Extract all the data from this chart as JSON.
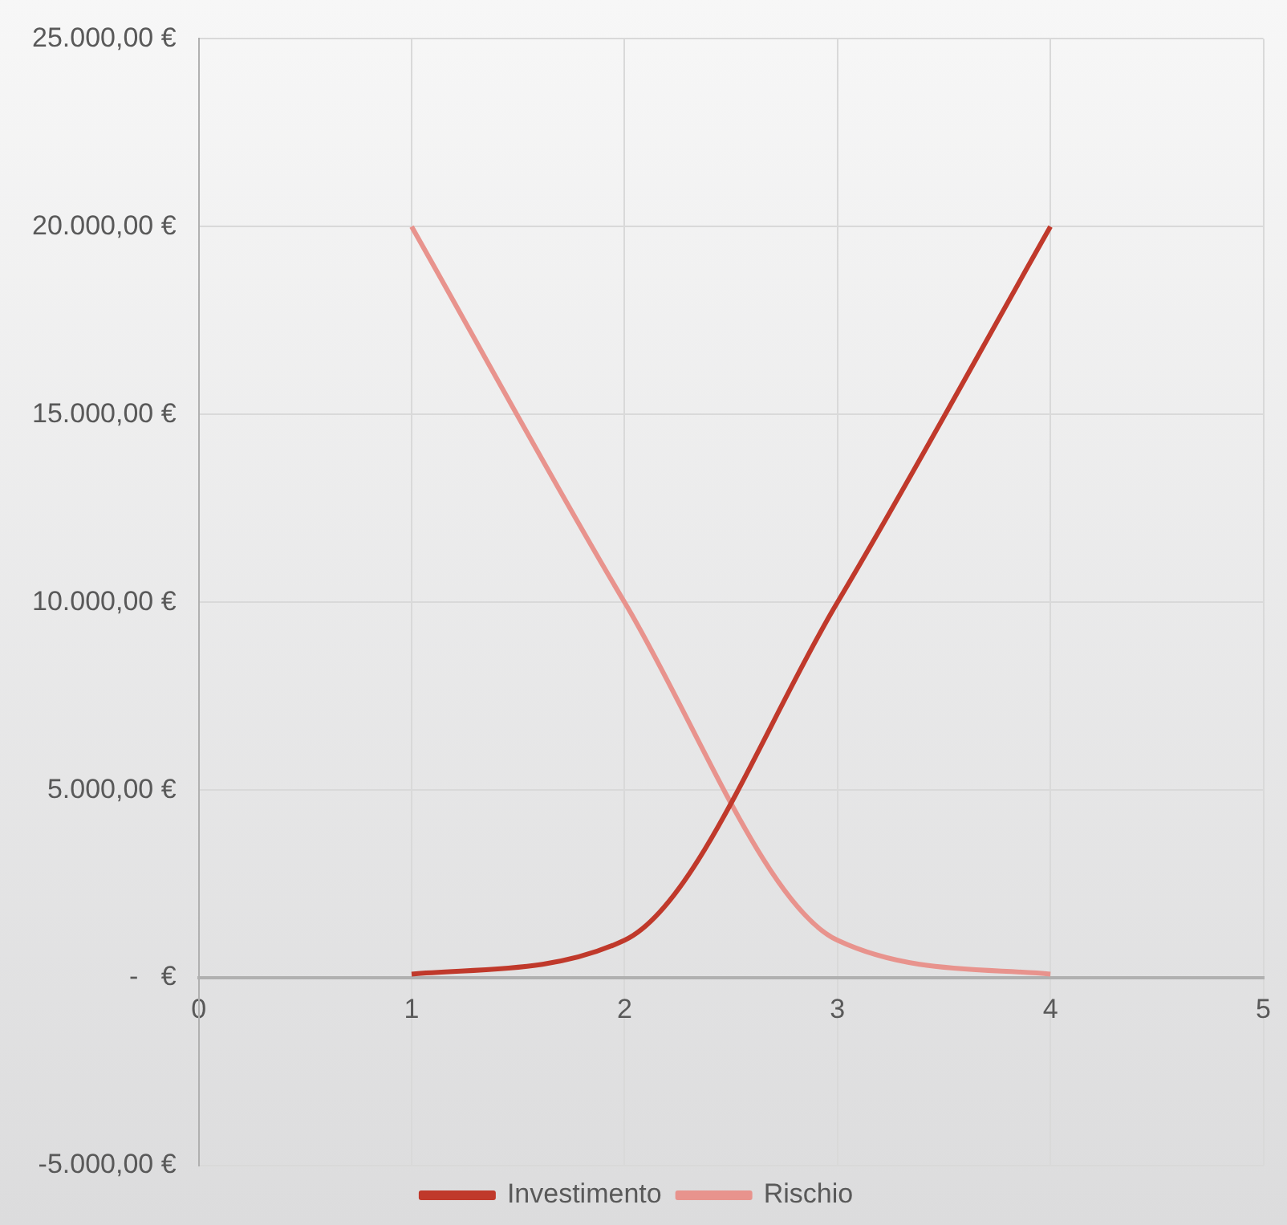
{
  "chart_data": {
    "type": "line",
    "x": [
      1,
      2,
      3,
      4
    ],
    "series": [
      {
        "name": "Investimento",
        "color": "#c0392b",
        "values": [
          100,
          1000,
          10000,
          20000
        ]
      },
      {
        "name": "Rischio",
        "color": "#e8938d",
        "values": [
          20000,
          10000,
          1000,
          100
        ]
      }
    ],
    "xlim": [
      0,
      5
    ],
    "xticks": [
      0,
      1,
      2,
      3,
      4,
      5
    ],
    "ylim": [
      -5000,
      25000
    ],
    "yticks": [
      {
        "value": -5000,
        "label": "-5.000,00 €"
      },
      {
        "value": 0,
        "label": "-   €"
      },
      {
        "value": 5000,
        "label": "5.000,00 €"
      },
      {
        "value": 10000,
        "label": "10.000,00 €"
      },
      {
        "value": 15000,
        "label": "15.000,00 €"
      },
      {
        "value": 20000,
        "label": "20.000,00 €"
      },
      {
        "value": 25000,
        "label": "25.000,00 €"
      }
    ],
    "grid": true,
    "legend": "bottom",
    "marker": "none",
    "line_style": "solid"
  }
}
